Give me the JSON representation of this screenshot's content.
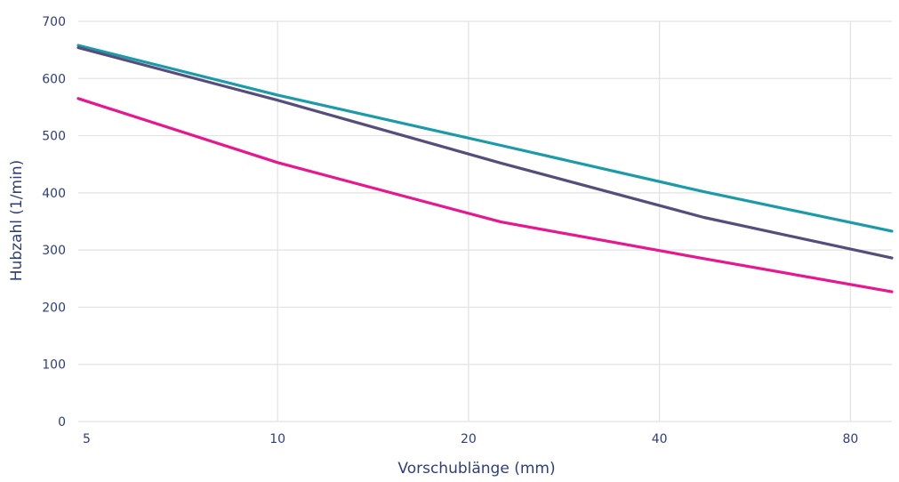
{
  "chart_data": {
    "type": "line",
    "title": "",
    "xlabel": "Vorschublänge (mm)",
    "ylabel": "Hubzahl (1/min)",
    "x_scale": "log2",
    "xlim": [
      4.85,
      93
    ],
    "ylim": [
      0,
      700
    ],
    "x_ticks": [
      5,
      10,
      20,
      40,
      80
    ],
    "x_tick_labels": [
      "5",
      "10",
      "20",
      "40",
      "80"
    ],
    "y_ticks": [
      0,
      100,
      200,
      300,
      400,
      500,
      600,
      700
    ],
    "y_tick_labels": [
      "0",
      "100",
      "200",
      "300",
      "400",
      "500",
      "600",
      "700"
    ],
    "grid": true,
    "legend": "none",
    "series": [
      {
        "color": "#1b9aaa",
        "x": [
          4.85,
          10,
          22.5,
          47,
          93
        ],
        "y": [
          658,
          571,
          483,
          402,
          333
        ]
      },
      {
        "color": "#554d7b",
        "x": [
          4.85,
          10,
          22.5,
          47,
          93
        ],
        "y": [
          654,
          562,
          452,
          357,
          286
        ]
      },
      {
        "color": "#e6178f",
        "x": [
          4.85,
          10,
          22.5,
          47,
          93
        ],
        "y": [
          565,
          453,
          349,
          285,
          227
        ]
      }
    ]
  }
}
